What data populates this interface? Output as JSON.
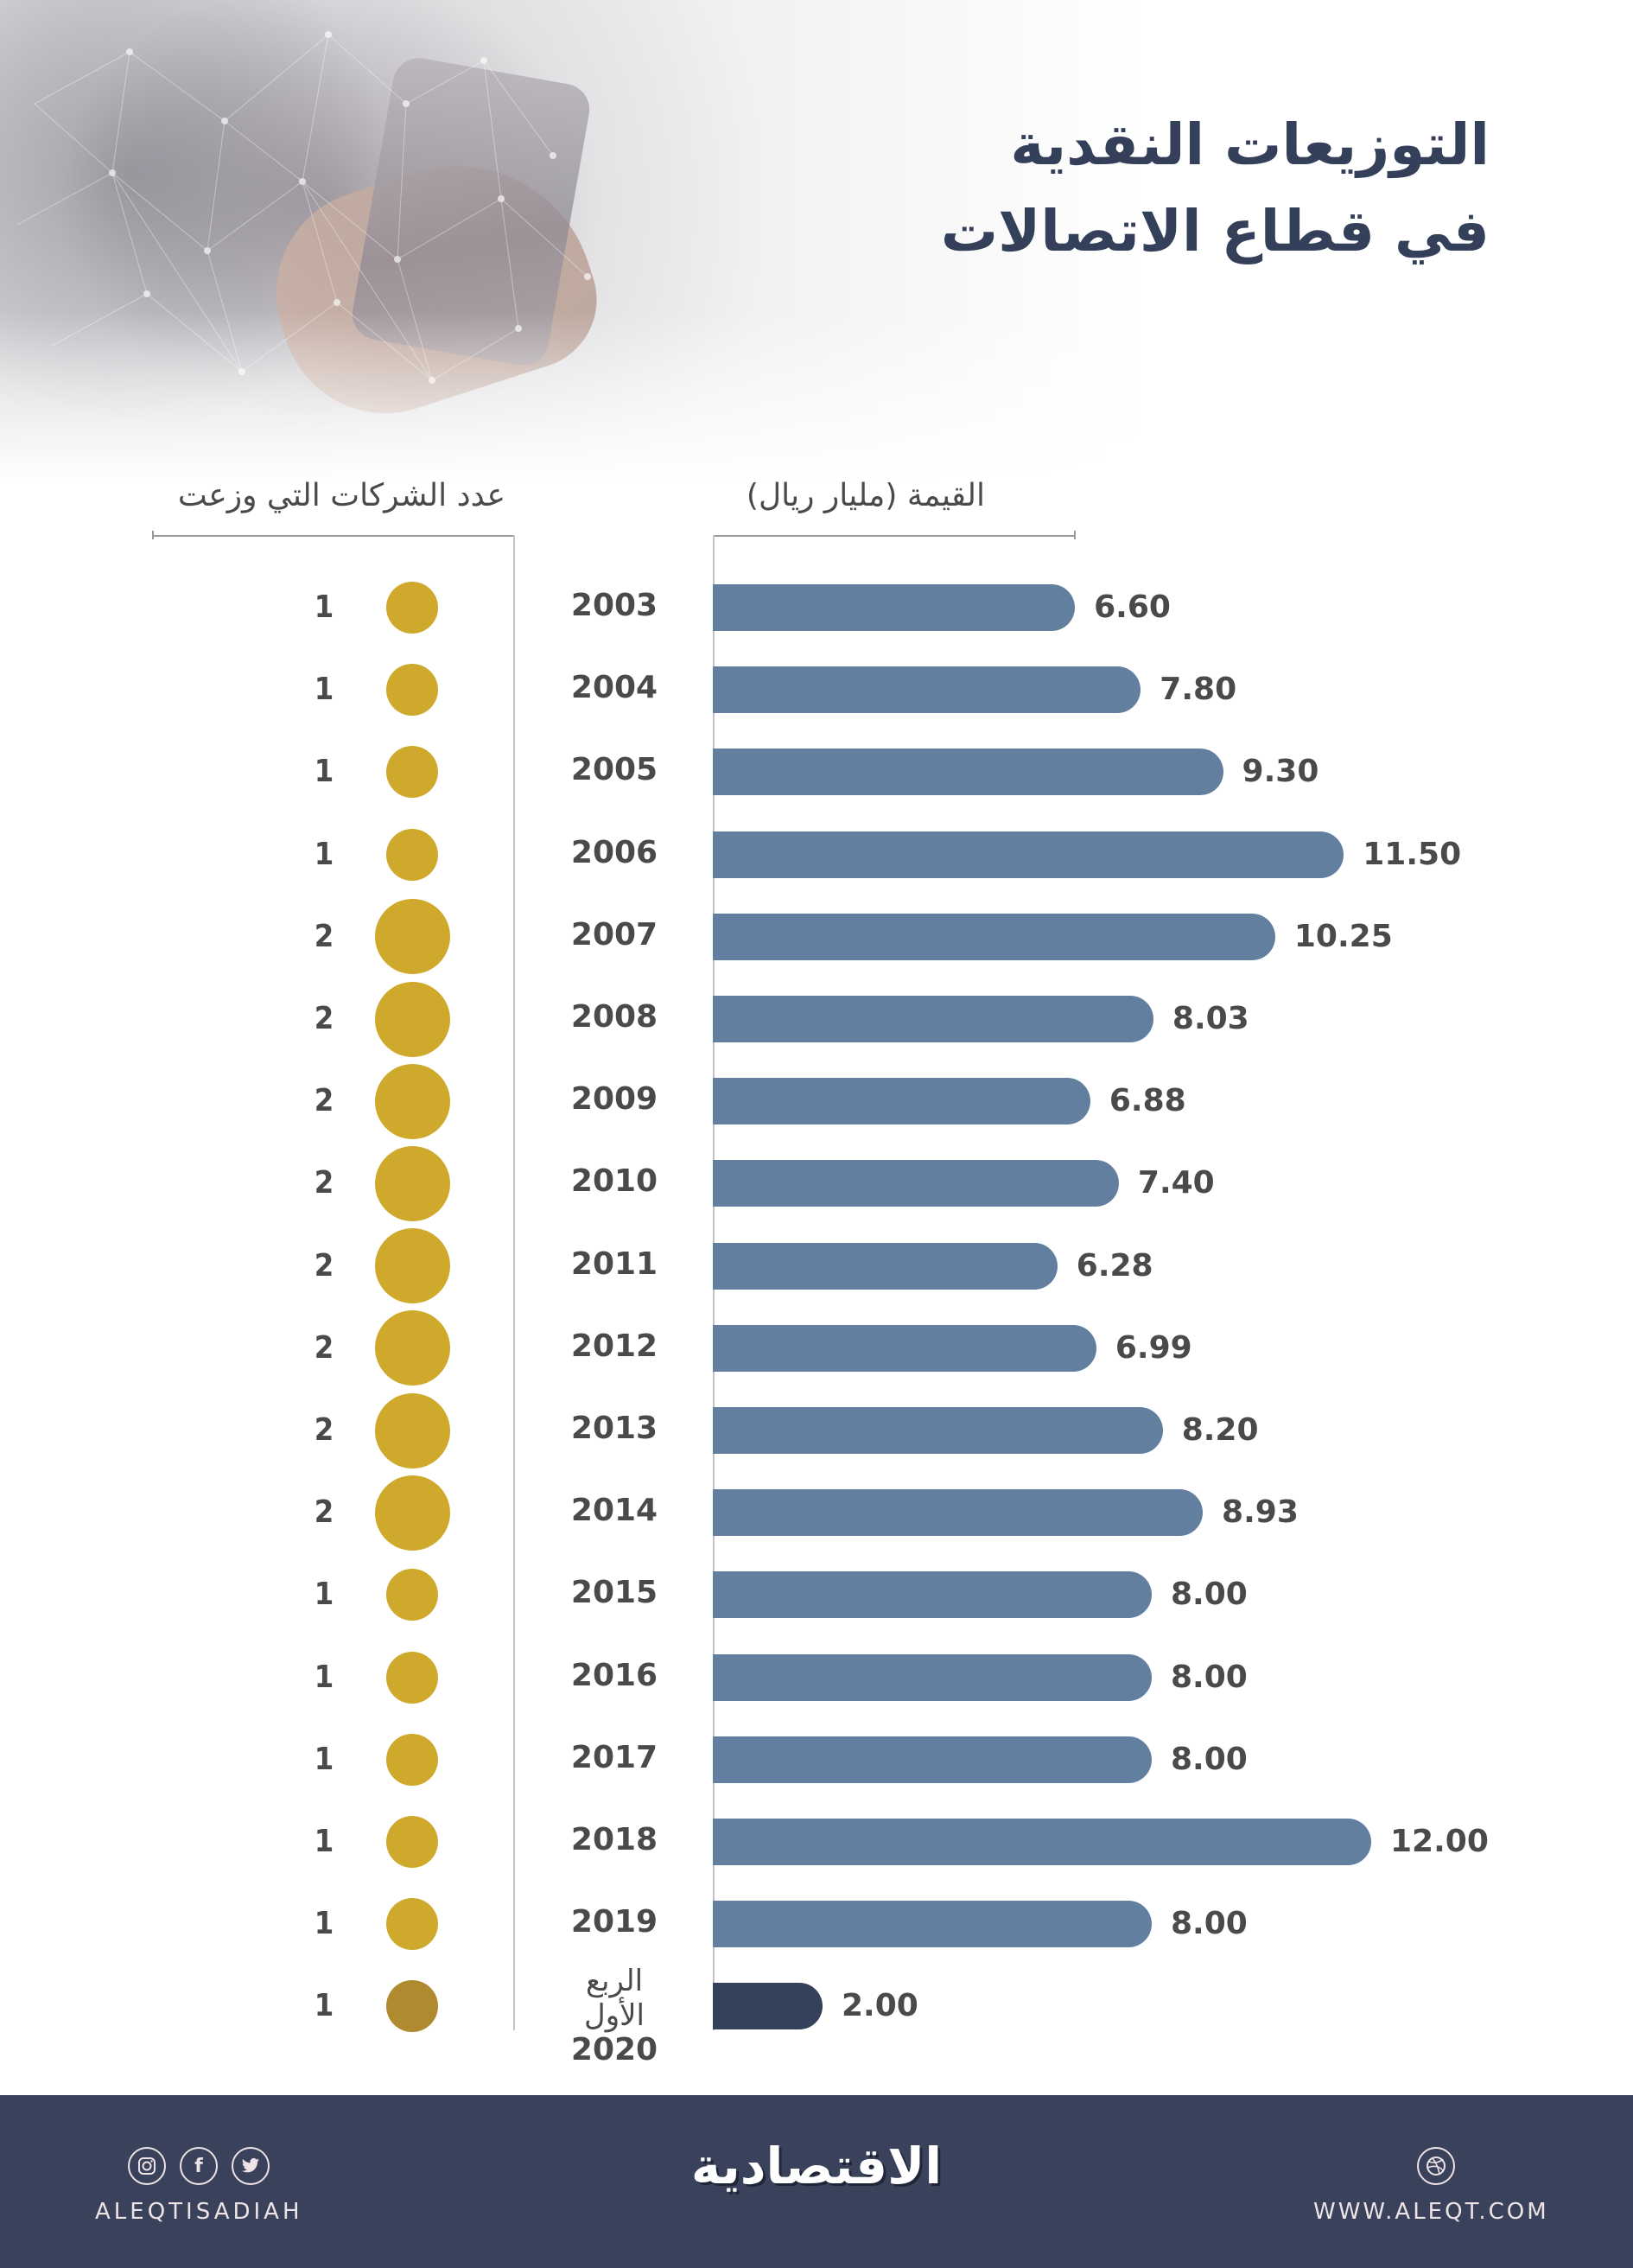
{
  "header": {
    "title_line1": "التوزيعات النقدية",
    "title_line2": "في قطاع الاتصالات"
  },
  "columns": {
    "companies_header": "عدد الشركات التي وزعت",
    "value_header": "القيمة (مليار ريال)"
  },
  "colors": {
    "bar": "#627f9f",
    "bar_highlight": "#35415a",
    "dot": "#cfa92c",
    "dot_highlight": "#b08a2e",
    "title": "#34405a",
    "footer_bg": "#39425a"
  },
  "rows": [
    {
      "year": "2003",
      "value": "6.60",
      "companies": "1"
    },
    {
      "year": "2004",
      "value": "7.80",
      "companies": "1"
    },
    {
      "year": "2005",
      "value": "9.30",
      "companies": "1"
    },
    {
      "year": "2006",
      "value": "11.50",
      "companies": "1"
    },
    {
      "year": "2007",
      "value": "10.25",
      "companies": "2"
    },
    {
      "year": "2008",
      "value": "8.03",
      "companies": "2"
    },
    {
      "year": "2009",
      "value": "6.88",
      "companies": "2"
    },
    {
      "year": "2010",
      "value": "7.40",
      "companies": "2"
    },
    {
      "year": "2011",
      "value": "6.28",
      "companies": "2"
    },
    {
      "year": "2012",
      "value": "6.99",
      "companies": "2"
    },
    {
      "year": "2013",
      "value": "8.20",
      "companies": "2"
    },
    {
      "year": "2014",
      "value": "8.93",
      "companies": "2"
    },
    {
      "year": "2015",
      "value": "8.00",
      "companies": "1"
    },
    {
      "year": "2016",
      "value": "8.00",
      "companies": "1"
    },
    {
      "year": "2017",
      "value": "8.00",
      "companies": "1"
    },
    {
      "year": "2018",
      "value": "12.00",
      "companies": "1"
    },
    {
      "year": "2019",
      "value": "8.00",
      "companies": "1"
    },
    {
      "year": "2020",
      "year_prefix": "الربع الأول",
      "value": "2.00",
      "companies": "1"
    }
  ],
  "footer": {
    "social_icons": [
      "instagram-icon",
      "facebook-icon",
      "twitter-icon"
    ],
    "social_glyphs": [
      "◎",
      "f",
      "🐦"
    ],
    "handle": "ALEQTISADIAH",
    "logo": "الاقتصادية",
    "website_icon": "dribbble-icon",
    "website": "WWW.ALEQT.COM"
  },
  "chart_data": {
    "type": "bar",
    "orientation": "horizontal",
    "title": "التوزيعات النقدية في قطاع الاتصالات",
    "categories": [
      "2003",
      "2004",
      "2005",
      "2006",
      "2007",
      "2008",
      "2009",
      "2010",
      "2011",
      "2012",
      "2013",
      "2014",
      "2015",
      "2016",
      "2017",
      "2018",
      "2019",
      "الربع الأول 2020"
    ],
    "series": [
      {
        "name": "القيمة (مليار ريال)",
        "values": [
          6.6,
          7.8,
          9.3,
          11.5,
          10.25,
          8.03,
          6.88,
          7.4,
          6.28,
          6.99,
          8.2,
          8.93,
          8.0,
          8.0,
          8.0,
          12.0,
          8.0,
          2.0
        ]
      },
      {
        "name": "عدد الشركات التي وزعت",
        "values": [
          1,
          1,
          1,
          1,
          2,
          2,
          2,
          2,
          2,
          2,
          2,
          2,
          1,
          1,
          1,
          1,
          1,
          1
        ]
      }
    ],
    "xlabel": "القيمة (مليار ريال)",
    "ylabel": "",
    "xlim": [
      0,
      12
    ],
    "grid": false,
    "data_labels": true
  }
}
